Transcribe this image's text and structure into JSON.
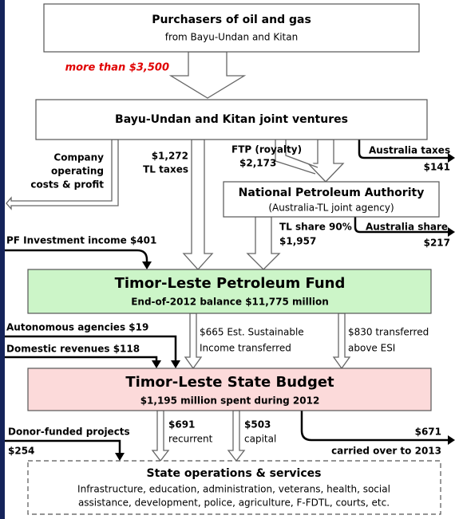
{
  "purchasers": {
    "title": "Purchasers of oil and gas",
    "subtitle": "from Bayu-Undan and Kitan"
  },
  "purchase_flow": "more than $3,500",
  "joint_ventures": {
    "title": "Bayu-Undan and Kitan joint ventures"
  },
  "company_flow": [
    "Company",
    "operating",
    "costs & profit"
  ],
  "tl_taxes_flow": [
    "$1,272",
    "TL taxes"
  ],
  "ftp_flow": [
    "FTP (royalty)",
    "$2,173"
  ],
  "australia_taxes_flow": [
    "Australia taxes",
    "$141"
  ],
  "npa": {
    "title": "National Petroleum Authority",
    "subtitle": "(Australia-TL joint agency)"
  },
  "tl_share_flow": [
    "TL share 90%",
    "$1,957"
  ],
  "australia_share_flow": [
    "Australia share",
    "$217"
  ],
  "pf_income_flow": "PF Investment income $401",
  "petroleum_fund": {
    "title": "Timor-Leste Petroleum Fund",
    "subtitle": "End-of-2012 balance $11,775 million"
  },
  "autonomous_flow": "Autonomous agencies  $19",
  "domestic_flow": "Domestic revenues  $118",
  "esi_flow": [
    "$665 Est. Sustainable",
    "Income transferred"
  ],
  "above_esi_flow": [
    "$830 transferred",
    "above ESI"
  ],
  "state_budget": {
    "title": "Timor-Leste State Budget",
    "subtitle": "$1,195 million spent during 2012"
  },
  "recurrent_flow": [
    "$691",
    "recurrent"
  ],
  "capital_flow": [
    "$503",
    "capital"
  ],
  "donor_flow": [
    "Donor-funded projects",
    "$254"
  ],
  "carryover_flow": [
    "$671",
    "carried over to 2013"
  ],
  "operations": {
    "title": "State operations & services",
    "lines": [
      "Infrastructure, education, administration, veterans, health, social",
      "assistance, development, police, agriculture, F-FDTL, courts, etc."
    ]
  }
}
